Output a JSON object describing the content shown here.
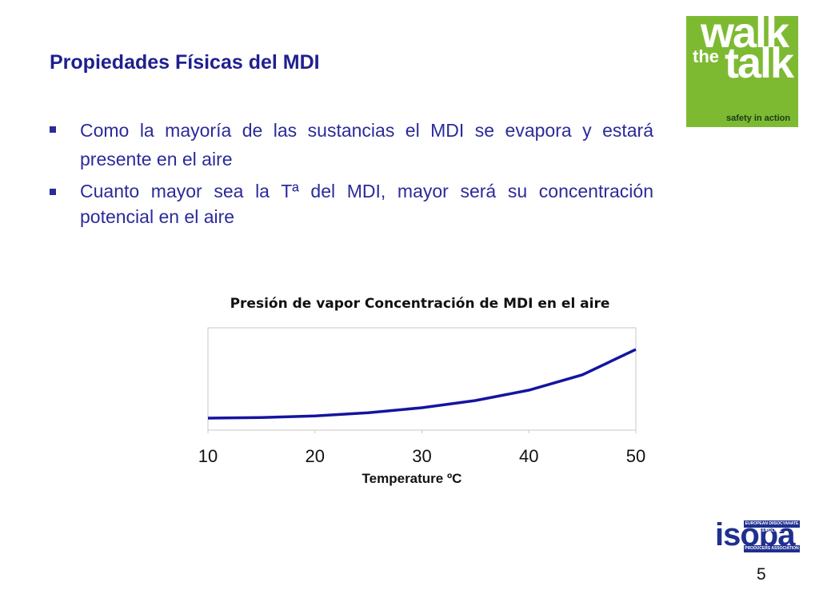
{
  "slide": {
    "title": "Propiedades Físicas del MDI",
    "bullets": [
      "Como la mayoría de las sustancias el  MDI se evapora y estará presente en el aire",
      "Cuanto mayor sea la Tª del MDI, mayor será su concentración potencial en el aire"
    ],
    "page_number": "5"
  },
  "logos": {
    "walk_the_talk": {
      "walk": "walk",
      "the": "the",
      "talk": "talk",
      "tagline": "safety in action"
    },
    "isopa": {
      "name": "isopa",
      "line1": "EUROPEAN DIISOCYANATE & POLYOL",
      "line2": "PRODUCERS ASSOCIATION"
    }
  },
  "colors": {
    "title": "#1f1f8f",
    "text": "#2b2b9a",
    "curve": "#1414a0",
    "logo_green": "#7dba32"
  },
  "chart_data": {
    "type": "line",
    "title": "Presión de vapor Concentración de MDI en el aire",
    "xlabel": "Temperature ºC",
    "ylabel": "",
    "x_ticks": [
      "10",
      "20",
      "30",
      "40",
      "50"
    ],
    "xlim": [
      10,
      50
    ],
    "ylim": [
      0,
      1
    ],
    "grid": false,
    "series": [
      {
        "x": [
          10,
          15,
          20,
          25,
          30,
          35,
          40,
          45,
          50
        ],
        "y": [
          0.0,
          0.006,
          0.024,
          0.06,
          0.115,
          0.195,
          0.31,
          0.48,
          0.76
        ]
      }
    ]
  }
}
